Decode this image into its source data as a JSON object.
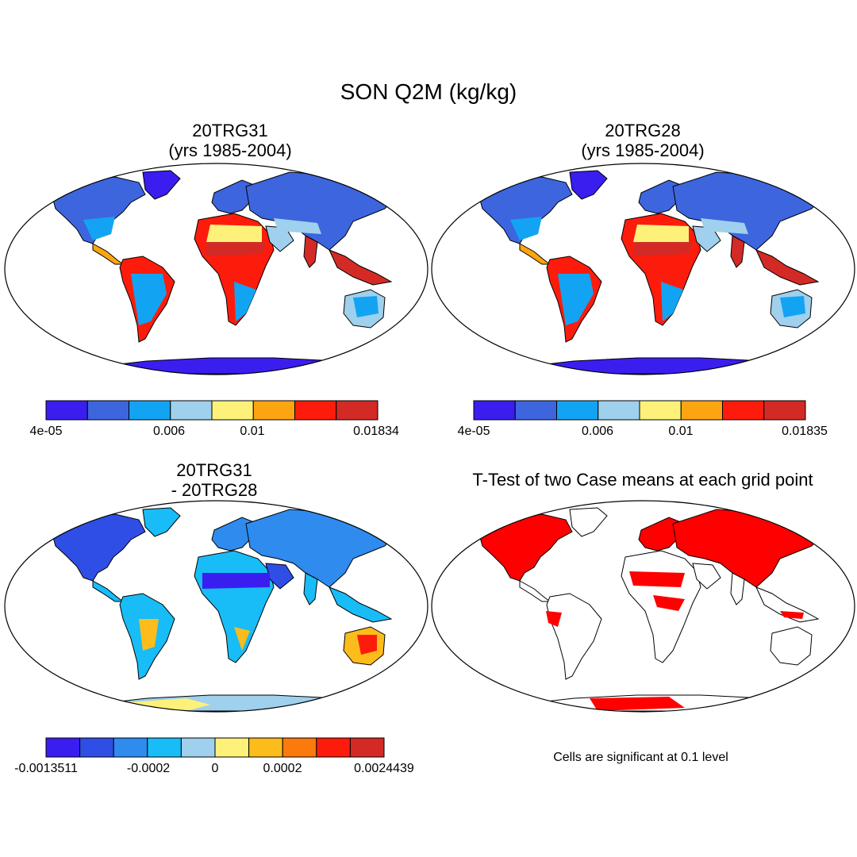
{
  "title": "SON Q2M (kg/kg)",
  "colors": {
    "abs_scale": [
      "#3a1ef0",
      "#3d65de",
      "#12a4f3",
      "#9fd0ed",
      "#fdf17a",
      "#fca511",
      "#fd1c0c",
      "#d42a26"
    ],
    "diff_scale": [
      "#3a1ef0",
      "#2f4ee6",
      "#2f8bee",
      "#18bcf7",
      "#9fd0ed",
      "#fdf17a",
      "#fcbc1b",
      "#fc7a0c",
      "#fd1c0c",
      "#d42a26"
    ],
    "significant": "#ff0000",
    "antarctica_abs": "#3a1ef0",
    "antarctica_diff_a": "#fdf17a",
    "antarctica_diff_b": "#9fd0ed"
  },
  "panels": [
    {
      "id": "case1",
      "title_line1": "20TRG31",
      "title_line2": "(yrs 1985-2004)",
      "colorbar": {
        "labels": [
          "4e-05",
          "0.006",
          "0.01",
          "0.01834"
        ],
        "label_boxes": [
          0,
          3,
          5,
          8
        ]
      }
    },
    {
      "id": "case2",
      "title_line1": "20TRG28",
      "title_line2": "(yrs 1985-2004)",
      "colorbar": {
        "labels": [
          "4e-05",
          "0.006",
          "0.01",
          "0.01835"
        ],
        "label_boxes": [
          0,
          3,
          5,
          8
        ]
      }
    },
    {
      "id": "diff",
      "title_line1": "20TRG31",
      "title_line2": "- 20TRG28",
      "colorbar": {
        "labels": [
          "-0.0013511",
          "-0.0002",
          "0",
          "0.0002",
          "0.0024439"
        ],
        "label_boxes": [
          0,
          4,
          5,
          6,
          10
        ]
      }
    },
    {
      "id": "ttest",
      "title_line1": "T-Test of two Case means at each grid point",
      "note": "Cells are significant at 0.1 level"
    }
  ]
}
